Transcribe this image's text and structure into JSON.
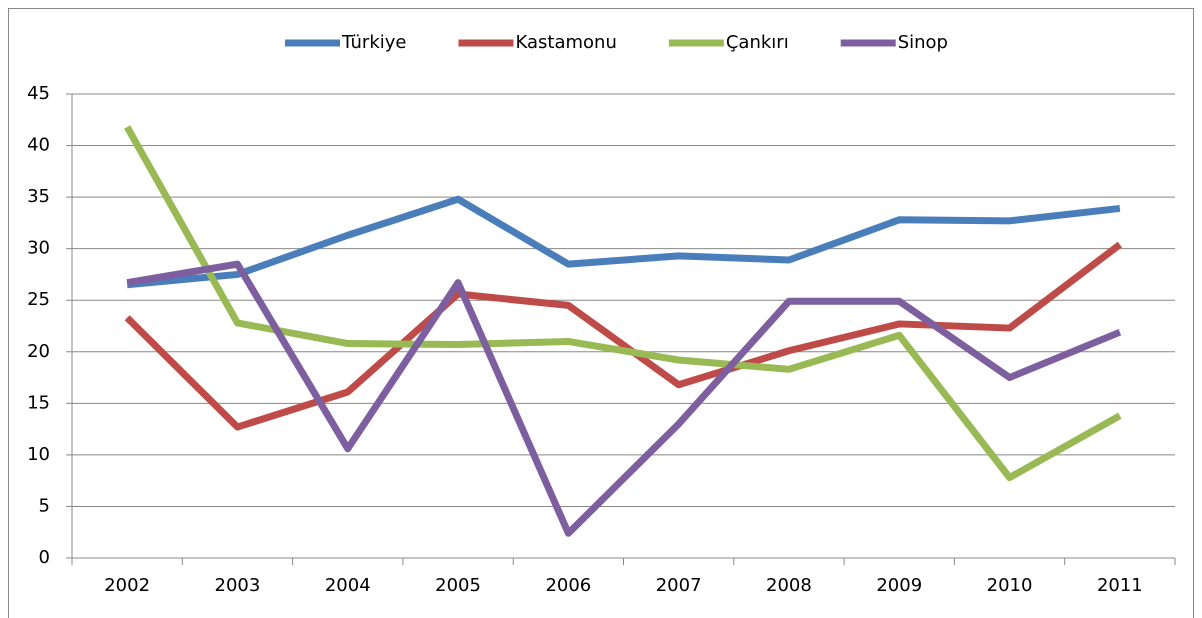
{
  "chart_data": {
    "type": "line",
    "categories": [
      "2002",
      "2003",
      "2004",
      "2005",
      "2006",
      "2007",
      "2008",
      "2009",
      "2010",
      "2011"
    ],
    "series": [
      {
        "name": "Türkiye",
        "color": "#4a7ebb",
        "values": [
          26.5,
          27.5,
          31.3,
          34.8,
          28.5,
          29.3,
          28.9,
          32.8,
          32.7,
          33.9
        ]
      },
      {
        "name": "Kastamonu",
        "color": "#be4b48",
        "values": [
          23.3,
          12.7,
          16.1,
          25.6,
          24.5,
          16.8,
          20.1,
          22.7,
          22.3,
          30.4
        ]
      },
      {
        "name": "Çankırı",
        "color": "#98b954",
        "values": [
          41.8,
          22.8,
          20.8,
          20.7,
          21.0,
          19.2,
          18.3,
          21.6,
          7.8,
          13.8
        ]
      },
      {
        "name": "Sinop",
        "color": "#7d5fa0",
        "values": [
          26.7,
          28.5,
          10.6,
          26.7,
          2.4,
          13.0,
          24.9,
          24.9,
          17.5,
          21.9
        ]
      }
    ],
    "ylim": [
      0,
      45
    ],
    "yticks": [
      0,
      5,
      10,
      15,
      20,
      25,
      30,
      35,
      40,
      45
    ],
    "grid": true,
    "legend": "top"
  }
}
